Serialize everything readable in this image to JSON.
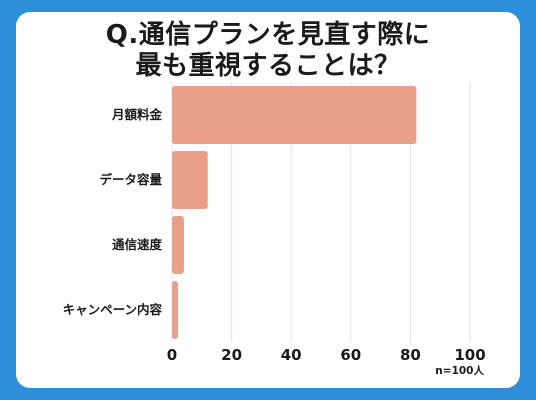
{
  "chart_data": {
    "type": "bar",
    "orientation": "horizontal",
    "title_lines": [
      "Q.通信プランを見直す際に",
      "最も重視することは？"
    ],
    "categories": [
      "月額料金",
      "データ容量",
      "通信速度",
      "キャンペーン内容"
    ],
    "values": [
      82,
      12,
      4,
      2
    ],
    "xlim": [
      0,
      100
    ],
    "xticks": [
      0,
      20,
      40,
      60,
      80,
      100
    ],
    "grid": true,
    "legend": "none",
    "note": "n=100人",
    "bar_color": "#e8a08a"
  }
}
